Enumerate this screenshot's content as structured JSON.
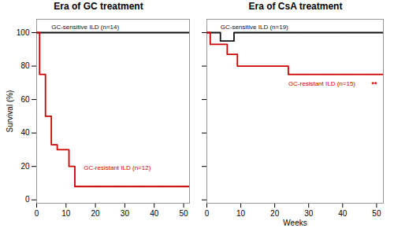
{
  "chart_data": [
    {
      "type": "line",
      "title": "Era of GC treatment",
      "ylabel": "Survival (%)",
      "xlim": [
        0,
        52
      ],
      "ylim": [
        -2,
        108
      ],
      "xticks": [
        0,
        10,
        20,
        30,
        40,
        50
      ],
      "yticks": [
        0,
        20,
        40,
        60,
        80,
        100
      ],
      "series": [
        {
          "color": "#111111",
          "line_style": "solid",
          "x": [
            0,
            52
          ],
          "values": [
            100,
            100
          ]
        },
        {
          "color": "#cc0000",
          "line_style": "solid",
          "x": [
            0,
            1,
            1,
            3,
            3,
            5,
            5,
            7,
            7,
            11,
            11,
            13,
            13,
            52
          ],
          "values": [
            100,
            100,
            75,
            75,
            50,
            50,
            33,
            33,
            30,
            30,
            20,
            20,
            8,
            8
          ]
        },
        {
          "color": "#cc0000",
          "line_style": "dotted",
          "x": [
            13,
            52
          ],
          "values": [
            8,
            8
          ]
        }
      ],
      "annotations": [
        {
          "text": "GC-sensitive ILD (n=14)",
          "x": 5,
          "y": 102,
          "color": "#111111"
        },
        {
          "text": "GC-resistant ILD (n=12)",
          "x": 16,
          "y": 18,
          "color": "#cc0000"
        }
      ]
    },
    {
      "type": "line",
      "title": "Era of CsA treatment",
      "xlabel": "Weeks",
      "xlim": [
        0,
        52
      ],
      "ylim": [
        -2,
        108
      ],
      "xticks": [
        0,
        10,
        20,
        30,
        40,
        50
      ],
      "yticks": [
        0,
        20,
        40,
        60,
        80,
        100
      ],
      "tick_labels": "x",
      "series": [
        {
          "color": "#111111",
          "line_style": "solid",
          "x": [
            0,
            4,
            4,
            8,
            8,
            52
          ],
          "values": [
            100,
            100,
            95,
            95,
            100,
            100
          ]
        },
        {
          "color": "#cc0000",
          "line_style": "solid",
          "x": [
            0,
            1,
            1,
            6,
            6,
            9,
            9,
            24,
            24,
            52
          ],
          "values": [
            100,
            100,
            93,
            93,
            87,
            87,
            80,
            80,
            75,
            75
          ]
        },
        {
          "color": "#cc0000",
          "line_style": "dotted",
          "x": [
            24,
            52
          ],
          "values": [
            75,
            75
          ]
        },
        {
          "color": "#111111",
          "line_style": "dotted",
          "x": [
            8,
            52
          ],
          "values": [
            100,
            100
          ]
        }
      ],
      "annotations": [
        {
          "text": "GC-sensitive ILD (n=19)",
          "x": 4,
          "y": 102,
          "color": "#111111"
        },
        {
          "text": "GC-resistant ILD (n=15)",
          "x": 24,
          "y": 71,
          "color": "#cc0000"
        },
        {
          "text": "**",
          "x": 48.5,
          "y": 71,
          "color": "#cc0000"
        }
      ]
    }
  ]
}
